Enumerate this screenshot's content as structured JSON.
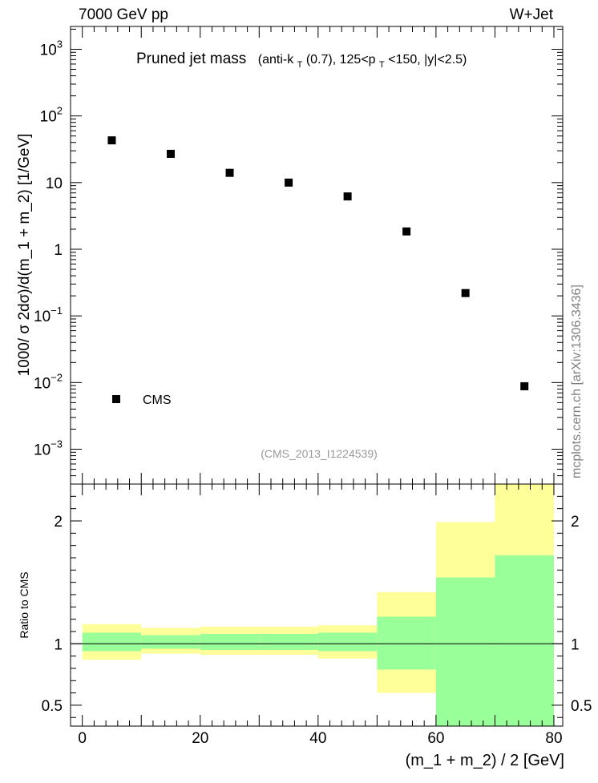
{
  "header": {
    "left_label": "7000 GeV pp",
    "right_label": "W+Jet"
  },
  "plot_title": {
    "main": "Pruned jet mass",
    "sub_prefix": "(anti-k",
    "sub_k_sub": "T",
    "sub_mid": "(0.7), 125<p",
    "sub_p_sub": "T",
    "sub_suffix": "<150, |y|<2.5)"
  },
  "side_label": "mcplots.cern.ch [arXiv:1306.3436]",
  "analysis_label": "(CMS_2013_I1224539)",
  "colors": {
    "data_marker": "#000000",
    "band_inner": "#99ff99",
    "band_outer": "#ffff99",
    "analysis_text": "#999999",
    "side_text": "#808080"
  },
  "chart_data": [
    {
      "type": "scatter",
      "panel": "main",
      "ylabel": "1000/ σ 2dσ)/d(m_1 + m_2) [1/GeV]",
      "yscale": "log",
      "ylim": [
        0.0003,
        2200
      ],
      "xlim": [
        -2,
        81.5
      ],
      "y_ticks": [
        {
          "value": 0.001,
          "base": "10",
          "exp": "−3"
        },
        {
          "value": 0.01,
          "base": "10",
          "exp": "−2"
        },
        {
          "value": 0.1,
          "base": "10",
          "exp": "−1"
        },
        {
          "value": 1,
          "base": "1",
          "exp": ""
        },
        {
          "value": 10,
          "base": "10",
          "exp": ""
        },
        {
          "value": 100,
          "base": "10",
          "exp": "2"
        },
        {
          "value": 1000,
          "base": "10",
          "exp": "3"
        }
      ],
      "legend": {
        "label": "CMS",
        "position": "bottom-left"
      },
      "series": [
        {
          "name": "CMS",
          "x": [
            5,
            15,
            25,
            35,
            45,
            55,
            65,
            75
          ],
          "y": [
            43,
            27,
            14,
            10,
            6.2,
            1.85,
            0.22,
            0.0088
          ]
        }
      ]
    },
    {
      "type": "area",
      "panel": "ratio",
      "xlabel": "(m_1 + m_2) / 2 [GeV]",
      "ylabel": "Ratio to CMS",
      "ylim": [
        0.33,
        2.3
      ],
      "xlim": [
        -2,
        81.5
      ],
      "x_ticks": [
        0,
        20,
        40,
        60,
        80
      ],
      "y_ticks": [
        0.5,
        1,
        2
      ],
      "reference_line": 1,
      "bins": [
        {
          "xlo": 0,
          "xhi": 10,
          "inner_lo": 0.94,
          "inner_hi": 1.09,
          "outer_lo": 0.87,
          "outer_hi": 1.16
        },
        {
          "xlo": 10,
          "xhi": 20,
          "inner_lo": 0.96,
          "inner_hi": 1.07,
          "outer_lo": 0.92,
          "outer_hi": 1.13
        },
        {
          "xlo": 20,
          "xhi": 30,
          "inner_lo": 0.95,
          "inner_hi": 1.08,
          "outer_lo": 0.91,
          "outer_hi": 1.14
        },
        {
          "xlo": 30,
          "xhi": 40,
          "inner_lo": 0.95,
          "inner_hi": 1.08,
          "outer_lo": 0.91,
          "outer_hi": 1.14
        },
        {
          "xlo": 40,
          "xhi": 50,
          "inner_lo": 0.94,
          "inner_hi": 1.09,
          "outer_lo": 0.88,
          "outer_hi": 1.15
        },
        {
          "xlo": 50,
          "xhi": 60,
          "inner_lo": 0.79,
          "inner_hi": 1.22,
          "outer_lo": 0.6,
          "outer_hi": 1.42
        },
        {
          "xlo": 60,
          "xhi": 70,
          "inner_lo": 0.33,
          "inner_hi": 1.54,
          "outer_lo": 0.33,
          "outer_hi": 1.99
        },
        {
          "xlo": 70,
          "xhi": 80,
          "inner_lo": 0.33,
          "inner_hi": 1.72,
          "outer_lo": 0.33,
          "outer_hi": 2.3
        }
      ]
    }
  ]
}
